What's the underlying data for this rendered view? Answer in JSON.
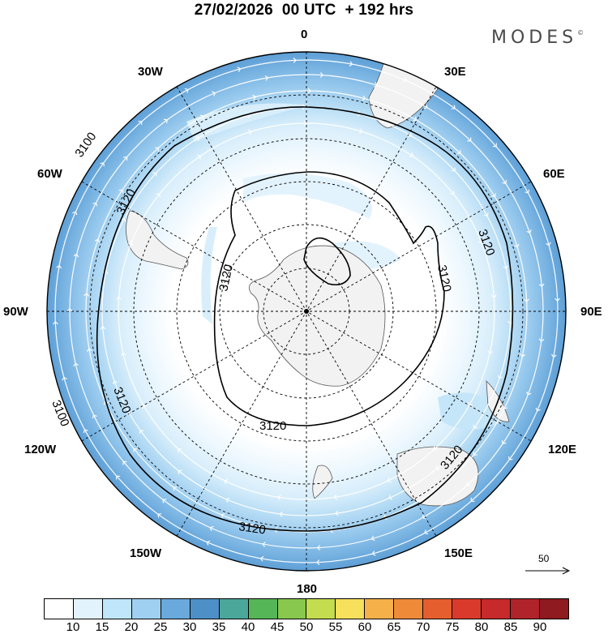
{
  "title": "27/02/2026  00 UTC  + 192 hrs",
  "brand": "MODES",
  "brand_mark": "©",
  "longitude_labels": {
    "lon_0": "0",
    "lon_30e": "30E",
    "lon_60e": "60E",
    "lon_90e": "90E",
    "lon_120e": "120E",
    "lon_150e": "150E",
    "lon_180": "180",
    "lon_150w": "150W",
    "lon_120w": "120W",
    "lon_90w": "90W",
    "lon_60w": "60W",
    "lon_30w": "30W"
  },
  "contour_labels": [
    "3120",
    "3100"
  ],
  "reference_vector": {
    "label": "50"
  },
  "colorbar": {
    "colors": [
      "#ffffff",
      "#e3f3fd",
      "#bfe6fb",
      "#9fd0f1",
      "#6aa9dc",
      "#4d90c8",
      "#4aa79a",
      "#55b657",
      "#88c84f",
      "#c3dd4f",
      "#f6e05c",
      "#f5b04a",
      "#ef8a39",
      "#e55e2d",
      "#d93a2b",
      "#c62a2b",
      "#b0232a",
      "#8f1a1f"
    ],
    "ticks": [
      "10",
      "15",
      "20",
      "25",
      "30",
      "35",
      "40",
      "45",
      "50",
      "55",
      "60",
      "65",
      "70",
      "75",
      "80",
      "85",
      "90"
    ]
  },
  "colors": {
    "wind_band_light": "#e3f3fd",
    "wind_band_mid": "#9fd0f1",
    "wind_band_dark": "#6aa9dc",
    "land": "#f2f2f2"
  }
}
